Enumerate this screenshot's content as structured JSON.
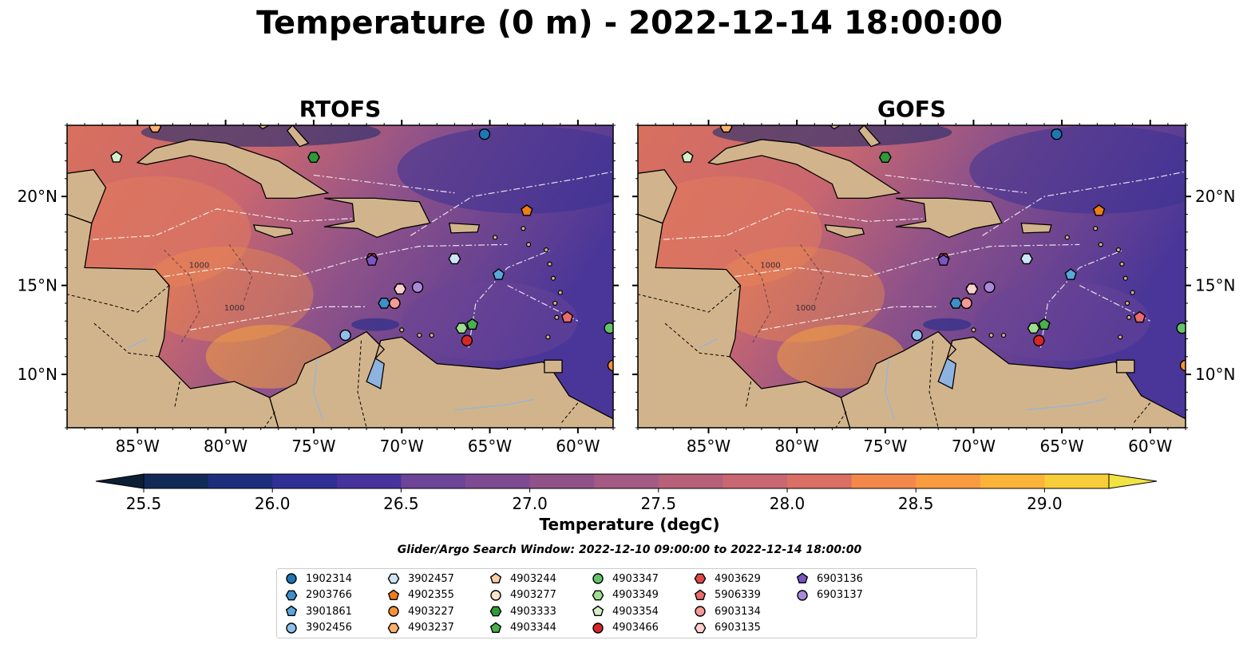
{
  "title": "Temperature (0 m) - 2022-12-14 18:00:00",
  "panels": [
    {
      "title": "RTOFS"
    },
    {
      "title": "GOFS"
    }
  ],
  "axes": {
    "lon_ticks": [
      "85°W",
      "80°W",
      "75°W",
      "70°W",
      "65°W",
      "60°W"
    ],
    "lat_ticks": [
      "20°N",
      "15°N",
      "10°N"
    ],
    "contour_labels": [
      "1000",
      "1000",
      "1000"
    ]
  },
  "colorbar": {
    "label": "Temperature (degC)",
    "ticks": [
      "25.5",
      "26.0",
      "26.5",
      "27.0",
      "27.5",
      "28.0",
      "28.5",
      "29.0"
    ],
    "colors": [
      "#0b1e35",
      "#122a57",
      "#1d2e7d",
      "#302f95",
      "#47339c",
      "#5c3b9b",
      "#6d4497",
      "#7e4a91",
      "#915289",
      "#a45a82",
      "#b6607a",
      "#c96773",
      "#da6f65",
      "#e87a57",
      "#f4884a",
      "#f99b3f",
      "#fbb338",
      "#f8cd3a",
      "#f2e345"
    ]
  },
  "search_window": "Glider/Argo Search Window: 2022-12-10 09:00:00 to 2022-12-14 18:00:00",
  "legend": {
    "items": [
      {
        "label": "1902314",
        "marker": "circle",
        "color": "#1f77b4"
      },
      {
        "label": "2903766",
        "marker": "hexagon",
        "color": "#3f8fc8"
      },
      {
        "label": "3901861",
        "marker": "pentagon",
        "color": "#5aa7d9"
      },
      {
        "label": "3902456",
        "marker": "circle",
        "color": "#8fc0ea"
      },
      {
        "label": "3902457",
        "marker": "hexagon",
        "color": "#cde4f6"
      },
      {
        "label": "4902355",
        "marker": "pentagon",
        "color": "#ee7d18"
      },
      {
        "label": "4903227",
        "marker": "circle",
        "color": "#f7923a"
      },
      {
        "label": "4903237",
        "marker": "hexagon",
        "color": "#fbb06d"
      },
      {
        "label": "4903244",
        "marker": "pentagon",
        "color": "#fdd0a2"
      },
      {
        "label": "4903277",
        "marker": "circle",
        "color": "#fde4cd"
      },
      {
        "label": "4903333",
        "marker": "hexagon",
        "color": "#2f9a37"
      },
      {
        "label": "4903344",
        "marker": "pentagon",
        "color": "#49b04e"
      },
      {
        "label": "4903347",
        "marker": "circle",
        "color": "#63c46a"
      },
      {
        "label": "4903349",
        "marker": "hexagon",
        "color": "#9fdc8f"
      },
      {
        "label": "4903354",
        "marker": "pentagon",
        "color": "#d4f0c8"
      },
      {
        "label": "4903466",
        "marker": "circle",
        "color": "#d62728"
      },
      {
        "label": "4903629",
        "marker": "hexagon",
        "color": "#e04848"
      },
      {
        "label": "5906339",
        "marker": "pentagon",
        "color": "#ec6a6a"
      },
      {
        "label": "6903134",
        "marker": "circle",
        "color": "#f59a95"
      },
      {
        "label": "6903135",
        "marker": "hexagon",
        "color": "#fbd0cc"
      },
      {
        "label": "6903136",
        "marker": "pentagon",
        "color": "#7b55c1"
      },
      {
        "label": "6903137",
        "marker": "circle",
        "color": "#a98ad9"
      }
    ],
    "columns": 7,
    "rows": 4
  },
  "map_data": {
    "extent": {
      "lon": [
        -89,
        -58
      ],
      "lat": [
        7,
        24
      ]
    },
    "land_color": "#d2b48c",
    "lake_color": "#8fb3e0",
    "floats": [
      {
        "id": "1902314",
        "lon": -65.3,
        "lat": 23.5
      },
      {
        "id": "2903766",
        "lon": -71.0,
        "lat": 14.0
      },
      {
        "id": "3901861",
        "lon": -64.5,
        "lat": 15.6
      },
      {
        "id": "3902456",
        "lon": -73.2,
        "lat": 12.2
      },
      {
        "id": "3902457",
        "lon": -67.0,
        "lat": 16.5
      },
      {
        "id": "4902355",
        "lon": -62.9,
        "lat": 19.2
      },
      {
        "id": "4903227",
        "lon": -58.0,
        "lat": 10.5
      },
      {
        "id": "4903237",
        "lon": -84.0,
        "lat": 23.9
      },
      {
        "id": "4903244",
        "lon": -70.1,
        "lat": 14.8
      },
      {
        "id": "4903277",
        "lon": -70.4,
        "lat": 14.0
      },
      {
        "id": "4903333",
        "lon": -75.0,
        "lat": 22.2
      },
      {
        "id": "4903344",
        "lon": -66.0,
        "lat": 12.8
      },
      {
        "id": "4903347",
        "lon": -58.2,
        "lat": 12.6
      },
      {
        "id": "4903349",
        "lon": -66.6,
        "lat": 12.6
      },
      {
        "id": "4903354",
        "lon": -86.2,
        "lat": 22.2
      },
      {
        "id": "4903466",
        "lon": -66.3,
        "lat": 11.9
      },
      {
        "id": "4903629",
        "lon": -71.7,
        "lat": 16.5
      },
      {
        "id": "5906339",
        "lon": -60.6,
        "lat": 13.2
      },
      {
        "id": "6903134",
        "lon": -70.4,
        "lat": 14.0
      },
      {
        "id": "6903135",
        "lon": -70.1,
        "lat": 14.8
      },
      {
        "id": "6903136",
        "lon": -71.7,
        "lat": 16.4
      },
      {
        "id": "6903137",
        "lon": -69.1,
        "lat": 14.9
      }
    ]
  }
}
